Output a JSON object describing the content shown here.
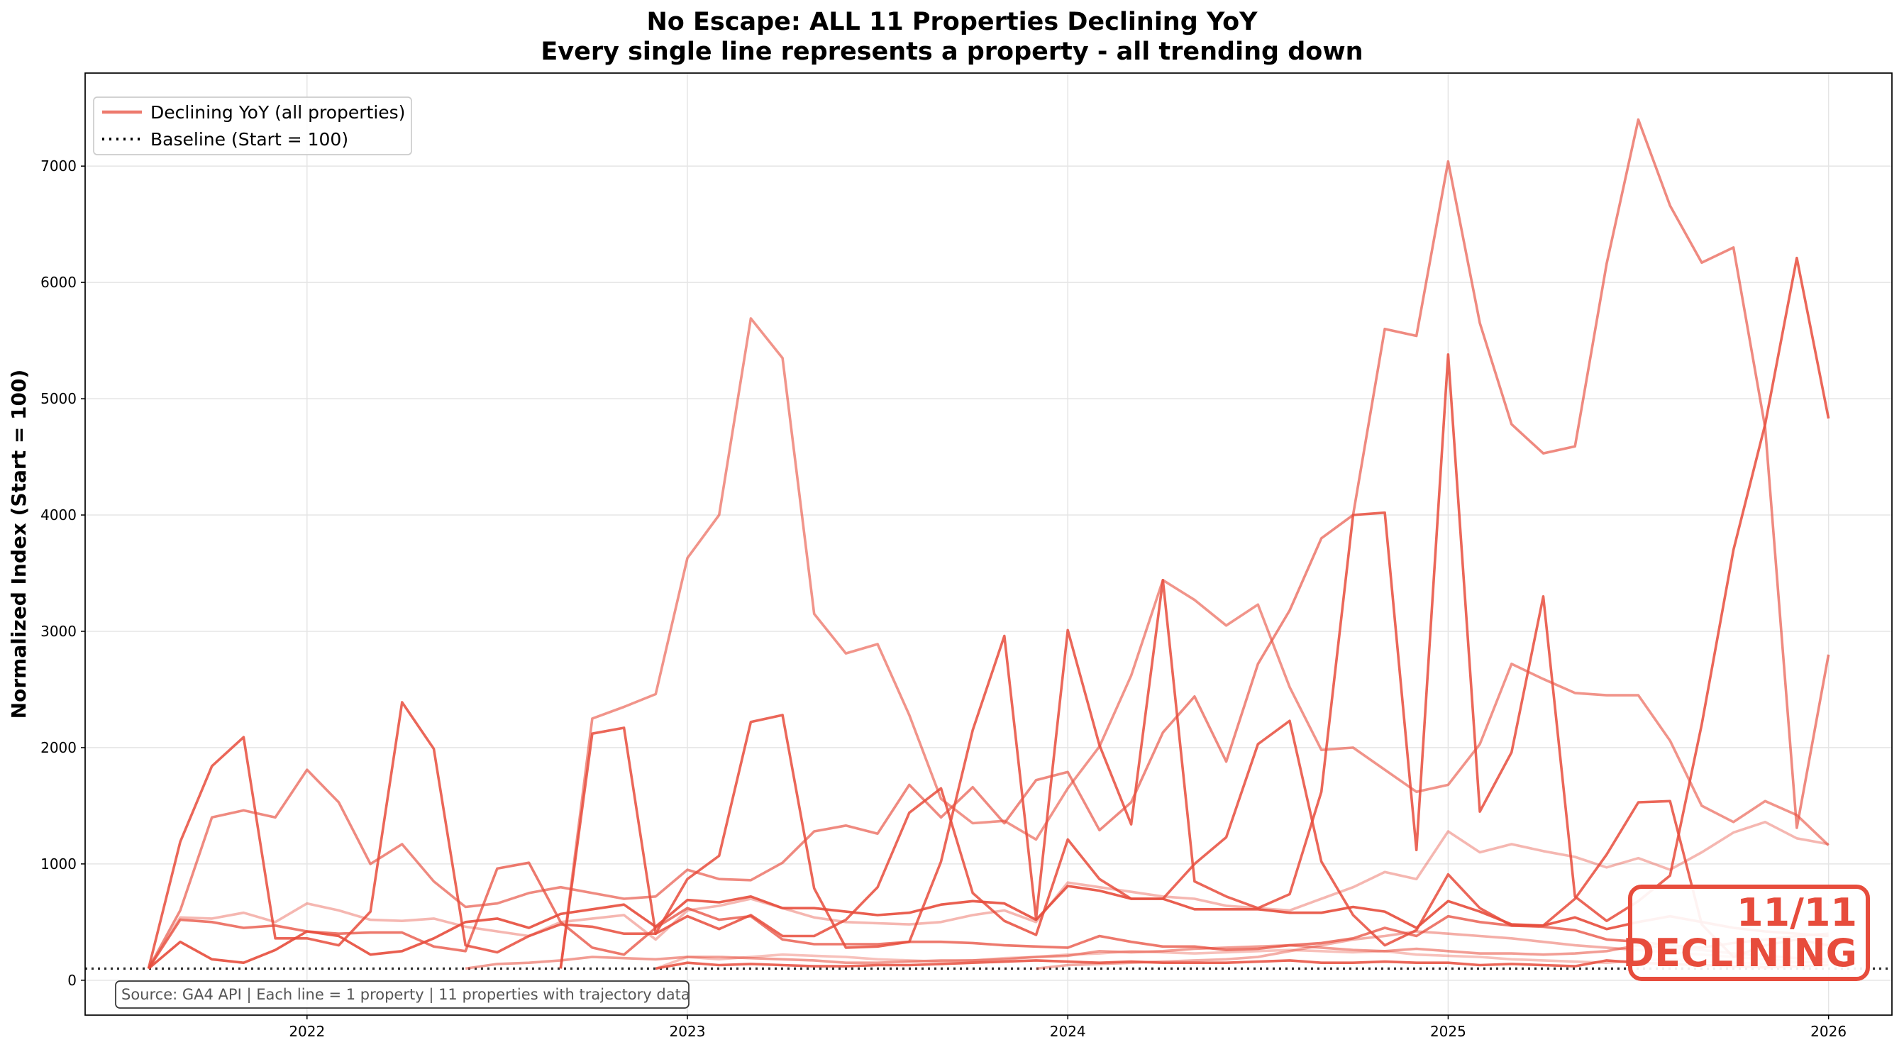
{
  "chart_data": {
    "type": "line",
    "title": "No Escape: ALL 11 Properties Declining YoY",
    "subtitle": "Every single line represents a property - all trending down",
    "xlabel": "",
    "ylabel": "Normalized Index (Start = 100)",
    "x_start": "2021-08",
    "x_frequency": "monthly",
    "x_ticks": [
      "2022",
      "2023",
      "2024",
      "2025",
      "2026"
    ],
    "y_ticks": [
      0,
      1000,
      2000,
      3000,
      4000,
      5000,
      6000,
      7000
    ],
    "xlim": [
      "2021-06",
      "2026-03"
    ],
    "ylim": [
      -300,
      7800
    ],
    "grid": true,
    "legend_position": "top-left",
    "legend": [
      {
        "label": "Declining YoY (all properties)",
        "style": "solid",
        "color": "#e74c3c"
      },
      {
        "label": "Baseline (Start = 100)",
        "style": "dotted",
        "color": "#000000"
      }
    ],
    "baseline": 100,
    "annotation_source": "Source: GA4 API | Each line = 1 property | 11 properties with trajectory data",
    "badge": {
      "line1": "11/11",
      "line2": "DECLINING",
      "color": "#e74c3c"
    },
    "series_color": "#e74c3c",
    "series": [
      {
        "opacity": 0.65,
        "values": [
          100,
          600,
          1400,
          1460,
          1400,
          1810,
          1530,
          1000,
          1170,
          850,
          630,
          660,
          750,
          800,
          750,
          700,
          720,
          950,
          870,
          860,
          1010,
          1280,
          1330,
          1260,
          1680,
          1400,
          1660,
          1350,
          1720,
          1790,
          1290,
          1530,
          2130,
          2440,
          1880,
          2720,
          3180,
          3800,
          4000,
          5600,
          5540,
          7040,
          5650,
          4780,
          4530,
          4590,
          6160,
          7400,
          6660,
          6170,
          6300,
          4750,
          1310,
          2800
        ]
      },
      {
        "opacity": 0.6,
        "values": [
          null,
          null,
          null,
          null,
          null,
          null,
          null,
          null,
          null,
          null,
          null,
          null,
          null,
          100,
          2250,
          2350,
          2460,
          3630,
          4000,
          5690,
          5350,
          3150,
          2810,
          2890,
          2280,
          1560,
          1350,
          1370,
          1210,
          1650,
          2010,
          2620,
          3440,
          3270,
          3050,
          3230,
          2520,
          1980,
          2000,
          1810,
          1620,
          1680,
          2030,
          2720,
          2590,
          2470,
          2450,
          2450,
          2060,
          1500,
          1360,
          1540,
          1420,
          1160
        ]
      },
      {
        "opacity": 0.85,
        "values": [
          null,
          null,
          null,
          null,
          null,
          null,
          null,
          null,
          null,
          null,
          null,
          null,
          null,
          100,
          2120,
          2170,
          400,
          870,
          1070,
          2220,
          2280,
          790,
          280,
          290,
          330,
          1020,
          2150,
          2960,
          530,
          3010,
          2020,
          1340,
          3440,
          850,
          720,
          620,
          740,
          1620,
          4000,
          4020,
          1120,
          5380,
          1450,
          1960,
          3300,
          720,
          510,
          680,
          900,
          2200,
          3700,
          4780,
          6210,
          4830
        ]
      },
      {
        "opacity": 0.85,
        "values": [
          100,
          1190,
          1840,
          2090,
          360,
          360,
          300,
          590,
          2390,
          1990,
          300,
          240,
          380,
          480,
          460,
          400,
          400,
          550,
          440,
          560,
          380,
          380,
          520,
          800,
          1440,
          1650,
          750,
          510,
          390,
          1210,
          870,
          700,
          700,
          1000,
          1230,
          2030,
          2230,
          1020,
          560,
          300,
          430,
          910,
          620,
          470,
          470,
          700,
          1080,
          1530,
          1540,
          480,
          200,
          300,
          350,
          300
        ]
      },
      {
        "opacity": 0.9,
        "values": [
          100,
          330,
          180,
          150,
          260,
          420,
          380,
          220,
          250,
          360,
          500,
          530,
          450,
          570,
          610,
          650,
          460,
          690,
          670,
          720,
          620,
          620,
          590,
          560,
          580,
          650,
          680,
          660,
          520,
          810,
          770,
          700,
          700,
          610,
          610,
          610,
          580,
          580,
          630,
          590,
          450,
          680,
          590,
          480,
          470,
          540,
          440,
          500,
          550,
          500,
          450,
          420,
          400,
          380
        ]
      },
      {
        "opacity": 0.4,
        "values": [
          100,
          540,
          530,
          580,
          500,
          660,
          600,
          520,
          510,
          530,
          460,
          420,
          380,
          500,
          530,
          560,
          350,
          600,
          640,
          700,
          620,
          540,
          500,
          490,
          480,
          500,
          560,
          600,
          500,
          840,
          800,
          760,
          720,
          700,
          640,
          620,
          600,
          700,
          800,
          930,
          870,
          1280,
          1100,
          1170,
          1110,
          1060,
          970,
          1050,
          950,
          1100,
          1270,
          1360,
          1220,
          1170
        ]
      },
      {
        "opacity": 0.75,
        "values": [
          100,
          520,
          500,
          450,
          470,
          420,
          400,
          410,
          410,
          290,
          250,
          960,
          1010,
          500,
          280,
          220,
          450,
          620,
          520,
          550,
          350,
          310,
          310,
          310,
          330,
          330,
          320,
          300,
          290,
          280,
          380,
          330,
          290,
          290,
          260,
          270,
          300,
          320,
          360,
          450,
          380,
          550,
          500,
          470,
          460,
          430,
          350,
          330,
          300,
          280,
          320,
          350,
          380,
          400
        ]
      },
      {
        "opacity": 0.55,
        "values": [
          null,
          null,
          null,
          null,
          null,
          null,
          null,
          null,
          null,
          null,
          100,
          140,
          150,
          170,
          200,
          190,
          180,
          200,
          200,
          190,
          180,
          170,
          150,
          150,
          160,
          170,
          170,
          180,
          200,
          210,
          250,
          240,
          250,
          270,
          280,
          290,
          300,
          280,
          260,
          250,
          270,
          250,
          230,
          230,
          220,
          230,
          250,
          300,
          280,
          260,
          230,
          210,
          190,
          180
        ]
      },
      {
        "opacity": 0.85,
        "values": [
          null,
          null,
          null,
          null,
          null,
          null,
          null,
          null,
          null,
          null,
          null,
          null,
          null,
          null,
          null,
          null,
          100,
          150,
          130,
          140,
          130,
          120,
          120,
          130,
          130,
          140,
          150,
          160,
          170,
          160,
          150,
          160,
          150,
          150,
          150,
          160,
          170,
          150,
          150,
          160,
          150,
          150,
          130,
          140,
          130,
          120,
          170,
          150,
          140,
          130,
          120,
          110,
          120,
          130
        ]
      },
      {
        "opacity": 0.35,
        "values": [
          null,
          null,
          null,
          null,
          null,
          null,
          null,
          null,
          null,
          null,
          null,
          null,
          null,
          null,
          null,
          null,
          100,
          200,
          180,
          200,
          220,
          210,
          200,
          180,
          170,
          160,
          170,
          190,
          200,
          220,
          230,
          250,
          240,
          230,
          240,
          250,
          260,
          250,
          240,
          250,
          220,
          210,
          200,
          180,
          170,
          160,
          150,
          170,
          180,
          160,
          150,
          140,
          150,
          160
        ]
      },
      {
        "opacity": 0.45,
        "values": [
          null,
          null,
          null,
          null,
          null,
          null,
          null,
          null,
          null,
          null,
          null,
          null,
          null,
          null,
          null,
          null,
          null,
          null,
          null,
          null,
          null,
          null,
          null,
          null,
          null,
          null,
          null,
          null,
          100,
          130,
          140,
          150,
          160,
          170,
          180,
          200,
          250,
          300,
          350,
          380,
          420,
          400,
          380,
          360,
          330,
          300,
          280,
          260,
          240,
          220,
          200,
          180,
          160,
          150
        ]
      }
    ]
  }
}
